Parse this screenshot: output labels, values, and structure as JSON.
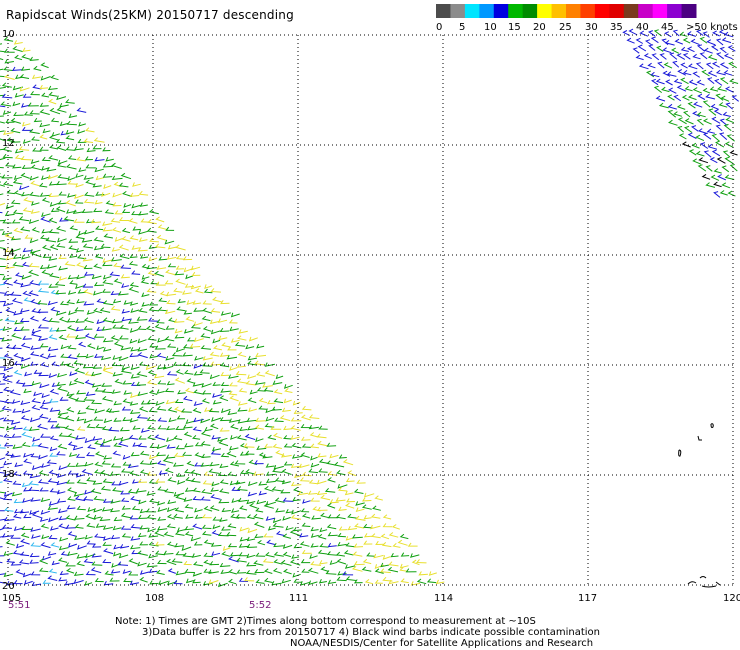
{
  "title": "Rapidscat Winds(25KM) 20150717 descending",
  "legend": {
    "swatches": [
      "#4c4c4c",
      "#8c8c8c",
      "#00e5ff",
      "#0099ff",
      "#0000e0",
      "#00b800",
      "#008c00",
      "#ffff00",
      "#ffc000",
      "#ff8000",
      "#ff4000",
      "#ff0000",
      "#e00000",
      "#7a3a1e",
      "#c800c8",
      "#ff00ff",
      "#8c00d0",
      "#4b0082"
    ],
    "labels": [
      "0",
      "5",
      "10",
      "15",
      "20",
      "25",
      "30",
      "35",
      "40",
      "45",
      ">50 knots"
    ]
  },
  "axes": {
    "lat_labels": [
      "10",
      "12",
      "14",
      "16",
      "18",
      "20"
    ],
    "lon_labels": [
      "105",
      "108",
      "111",
      "114",
      "117",
      "120"
    ]
  },
  "times": [
    "5:51",
    "5:52"
  ],
  "notes": [
    "Note: 1) Times are GMT 2)Times along bottom correspond to measurement at ~10S",
    "3)Data buffer is 22 hrs from 20150717 4) Black wind barbs indicate possible contamination",
    "NOAA/NESDIS/Center for Satellite Applications and Research"
  ],
  "colors": {
    "grid": "#000000",
    "time_label": "#7a1a7a",
    "barb_blue": "#1818d8",
    "barb_green": "#10a010",
    "barb_yellow": "#e8e030",
    "barb_cyan": "#30b8f0"
  }
}
